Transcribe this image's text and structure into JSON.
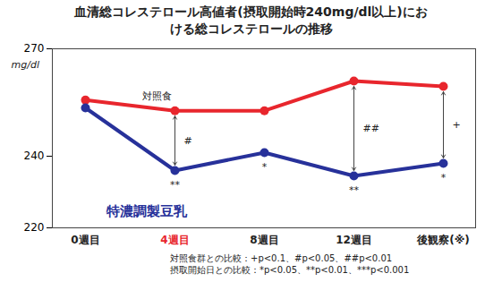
{
  "chart_data": {
    "type": "line",
    "title": "血清総コレステロール高値者(摂取開始時240mg/dl以上)における総コレステロールの推移",
    "y_label": "mg/dl",
    "categories": [
      "0週目",
      "4週目",
      "8週目",
      "12週目",
      "後観察(※)"
    ],
    "series": [
      {
        "name": "対照食",
        "color": "#e8262d",
        "values": [
          255.7,
          252.7,
          252.7,
          261,
          259.5
        ],
        "marker": "circle"
      },
      {
        "name": "特濃調製豆乳",
        "color": "#27319a",
        "values": [
          253.5,
          236,
          241,
          234.5,
          238
        ],
        "marker": "circle"
      }
    ],
    "ylim": [
      220,
      270
    ],
    "yticks": [
      220,
      240,
      270
    ],
    "grid": false,
    "annotations": [
      {
        "category": "4週目",
        "series": "特濃調製豆乳",
        "text": "**"
      },
      {
        "category": "8週目",
        "series": "特濃調製豆乳",
        "text": "*"
      },
      {
        "category": "12週目",
        "series": "特濃調製豆乳",
        "text": "**"
      },
      {
        "category": "後観察(※)",
        "series": "特濃調製豆乳",
        "text": "*"
      },
      {
        "category": "4週目",
        "text": "#"
      },
      {
        "category": "12週目",
        "text": "##"
      },
      {
        "category": "後観察(※)",
        "text": "+"
      }
    ],
    "notes": [
      "対照食群との比較：+p<0.1、#p<0.05、##p<0.01",
      "摂取開始日との比較：*p<0.05、**p<0.01、***p<0.001"
    ]
  }
}
